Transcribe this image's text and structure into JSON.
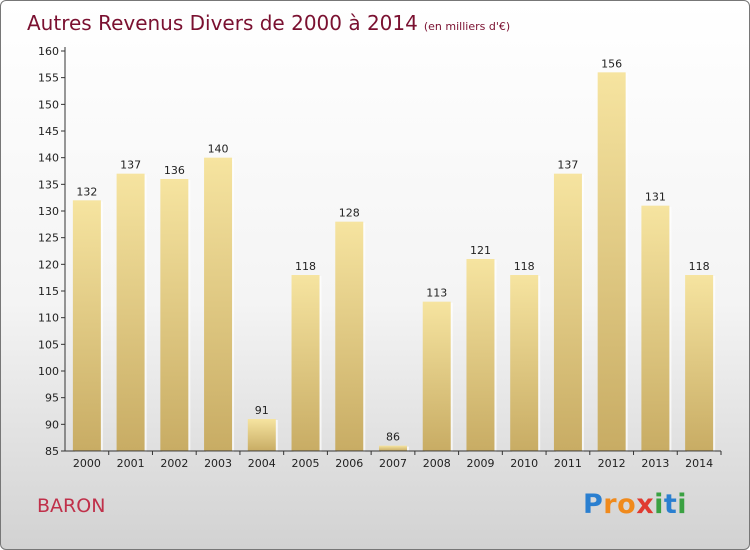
{
  "title": "Autres Revenus Divers de 2000 à 2014",
  "subtitle": "(en milliers d'€)",
  "place": "BARON",
  "logo": {
    "letters": [
      "P",
      "r",
      "o",
      "x",
      "i",
      "t",
      "i"
    ],
    "colors": [
      "#2a7fd0",
      "#f08a1c",
      "#f08a1c",
      "#e03a30",
      "#3aa142",
      "#2a7fd0",
      "#3aa142"
    ]
  },
  "colors": {
    "title": "#7a1030",
    "place": "#c0304a",
    "bar_top": "#f6e4a0",
    "bar_bottom": "#c8ac64"
  },
  "chart_data": {
    "type": "bar",
    "categories": [
      "2000",
      "2001",
      "2002",
      "2003",
      "2004",
      "2005",
      "2006",
      "2007",
      "2008",
      "2009",
      "2010",
      "2011",
      "2012",
      "2013",
      "2014"
    ],
    "values": [
      132,
      137,
      136,
      140,
      91,
      118,
      128,
      86,
      113,
      121,
      118,
      137,
      156,
      131,
      118
    ],
    "title": "Autres Revenus Divers de 2000 à 2014",
    "ylim": [
      85,
      160
    ],
    "yticks": [
      85,
      90,
      95,
      100,
      105,
      110,
      115,
      120,
      125,
      130,
      135,
      140,
      145,
      150,
      155,
      160
    ],
    "grid": false,
    "data_labels": true
  }
}
